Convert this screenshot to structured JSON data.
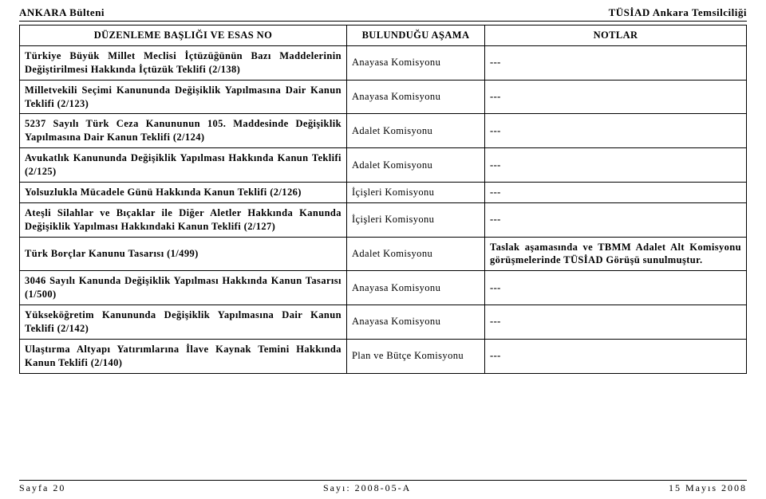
{
  "header": {
    "left": "ANKARA Bülteni",
    "right": "TÜSİAD Ankara Temsilciliği"
  },
  "columns": {
    "c1": "DÜZENLEME BAŞLIĞI VE ESAS NO",
    "c2": "BULUNDUĞU AŞAMA",
    "c3": "NOTLAR"
  },
  "rows": [
    {
      "title": "Türkiye Büyük Millet Meclisi İçtüzüğünün Bazı Maddelerinin Değiştirilmesi Hakkında İçtüzük Teklifi (2/138)",
      "stage": "Anayasa Komisyonu",
      "notes": "---"
    },
    {
      "title": "Milletvekili Seçimi Kanununda Değişiklik Yapılmasına Dair Kanun Teklifi (2/123)",
      "stage": "Anayasa Komisyonu",
      "notes": "---"
    },
    {
      "title": "5237 Sayılı Türk Ceza Kanununun 105. Maddesinde Değişiklik Yapılmasına Dair Kanun Teklifi (2/124)",
      "stage": "Adalet Komisyonu",
      "notes": "---"
    },
    {
      "title": "Avukatlık Kanununda Değişiklik Yapılması Hakkında Kanun Teklifi (2/125)",
      "stage": "Adalet Komisyonu",
      "notes": "---"
    },
    {
      "title": "Yolsuzlukla Mücadele Günü Hakkında Kanun Teklifi (2/126)",
      "stage": "İçişleri Komisyonu",
      "notes": "---"
    },
    {
      "title": "Ateşli Silahlar ve Bıçaklar ile Diğer Aletler Hakkında Kanunda Değişiklik Yapılması Hakkındaki Kanun Teklifi (2/127)",
      "stage": "İçişleri Komisyonu",
      "notes": "---"
    },
    {
      "title": "Türk Borçlar Kanunu Tasarısı (1/499)",
      "stage": "Adalet Komisyonu",
      "notes": "Taslak aşamasında ve TBMM Adalet Alt Komisyonu görüşmelerinde TÜSİAD Görüşü sunulmuştur."
    },
    {
      "title": "3046 Sayılı Kanunda Değişiklik Yapılması Hakkında Kanun Tasarısı (1/500)",
      "stage": "Anayasa Komisyonu",
      "notes": "---"
    },
    {
      "title": "Yükseköğretim Kanununda Değişiklik Yapılmasına Dair Kanun Teklifi (2/142)",
      "stage": "Anayasa Komisyonu",
      "notes": "---"
    },
    {
      "title": "Ulaştırma Altyapı Yatırımlarına İlave Kaynak Temini Hakkında Kanun Teklifi (2/140)",
      "stage": "Plan ve Bütçe Komisyonu",
      "notes": "---"
    }
  ],
  "footer": {
    "page": "Sayfa 20",
    "issue": "Sayı: 2008-05-A",
    "date": "15 Mayıs 2008"
  }
}
